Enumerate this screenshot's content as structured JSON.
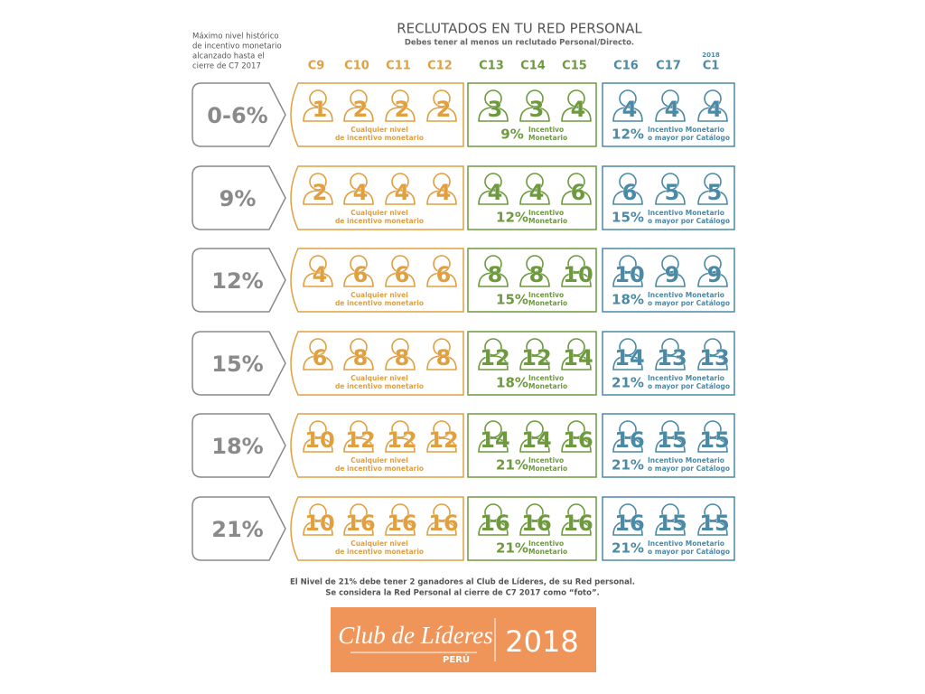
{
  "header": {
    "left_note": [
      "Máximo nivel histórico",
      "de incentivo monetario",
      "alcanzado hasta el",
      "cierre de C7 2017"
    ],
    "title": "RECLUTADOS EN TU RED PERSONAL",
    "subtitle": "Debes tener al menos un reclutado Personal/Directo."
  },
  "columns": [
    "C9",
    "C10",
    "C11",
    "C12",
    "C13",
    "C14",
    "C15",
    "C16",
    "C17",
    "C1"
  ],
  "year_label": "2018",
  "rows": [
    {
      "level": "0-6%",
      "orange": [
        1,
        2,
        2,
        2
      ],
      "orange_note": [
        "Cualquier nivel",
        "de incentivo monetario"
      ],
      "green": [
        3,
        3,
        4
      ],
      "green_pct": "9%",
      "green_note": [
        "Incentivo",
        "Monetario"
      ],
      "blue": [
        4,
        4,
        4
      ],
      "blue_pct": "12%",
      "blue_note": [
        "Incentivo Monetario",
        "o mayor por Catálogo"
      ]
    },
    {
      "level": "9%",
      "orange": [
        2,
        4,
        4,
        4
      ],
      "orange_note": [
        "Cualquier nivel",
        "de incentivo monetario"
      ],
      "green": [
        4,
        4,
        6
      ],
      "green_pct": "12%",
      "green_note": [
        "Incentivo",
        "Monetario"
      ],
      "blue": [
        6,
        5,
        5
      ],
      "blue_pct": "15%",
      "blue_note": [
        "Incentivo Monetario",
        "o mayor por Catálogo"
      ]
    },
    {
      "level": "12%",
      "orange": [
        4,
        6,
        6,
        6
      ],
      "orange_note": [
        "Cualquier nivel",
        "de incentivo monetario"
      ],
      "green": [
        8,
        8,
        10
      ],
      "green_pct": "15%",
      "green_note": [
        "Incentivo",
        "Monetario"
      ],
      "blue": [
        10,
        9,
        9
      ],
      "blue_pct": "18%",
      "blue_note": [
        "Incentivo Monetario",
        "o mayor por Catálogo"
      ]
    },
    {
      "level": "15%",
      "orange": [
        6,
        8,
        8,
        8
      ],
      "orange_note": [
        "Cualquier nivel",
        "de incentivo monetario"
      ],
      "green": [
        12,
        12,
        14
      ],
      "green_pct": "18%",
      "green_note": [
        "Incentivo",
        "Monetario"
      ],
      "blue": [
        14,
        13,
        13
      ],
      "blue_pct": "21%",
      "blue_note": [
        "Incentivo Monetario",
        "o mayor por Catálogo"
      ]
    },
    {
      "level": "18%",
      "orange": [
        10,
        12,
        12,
        12
      ],
      "orange_note": [
        "Cualquier nivel",
        "de incentivo monetario"
      ],
      "green": [
        14,
        14,
        16
      ],
      "green_pct": "21%",
      "green_note": [
        "Incentivo",
        "Monetario"
      ],
      "blue": [
        16,
        15,
        15
      ],
      "blue_pct": "21%",
      "blue_note": [
        "Incentivo Monetario",
        "o mayor por Catálogo"
      ]
    },
    {
      "level": "21%",
      "orange": [
        10,
        16,
        16,
        16
      ],
      "orange_note": [
        "Cualquier nivel",
        "de incentivo monetario"
      ],
      "green": [
        16,
        16,
        16
      ],
      "green_pct": "21%",
      "green_note": [
        "Incentivo",
        "Monetario"
      ],
      "blue": [
        16,
        15,
        15
      ],
      "blue_pct": "21%",
      "blue_note": [
        "Incentivo Monetario",
        "o mayor por Catálogo"
      ]
    }
  ],
  "footer": [
    "El Nivel de 21% debe tener 2 ganadores al Club de Líderes, de su Red personal.",
    "Se considera la Red Personal al cierre de C7 2017 como “foto”."
  ],
  "logo": {
    "name": "Club de Líderes",
    "country": "PERÚ",
    "year": "2018"
  }
}
